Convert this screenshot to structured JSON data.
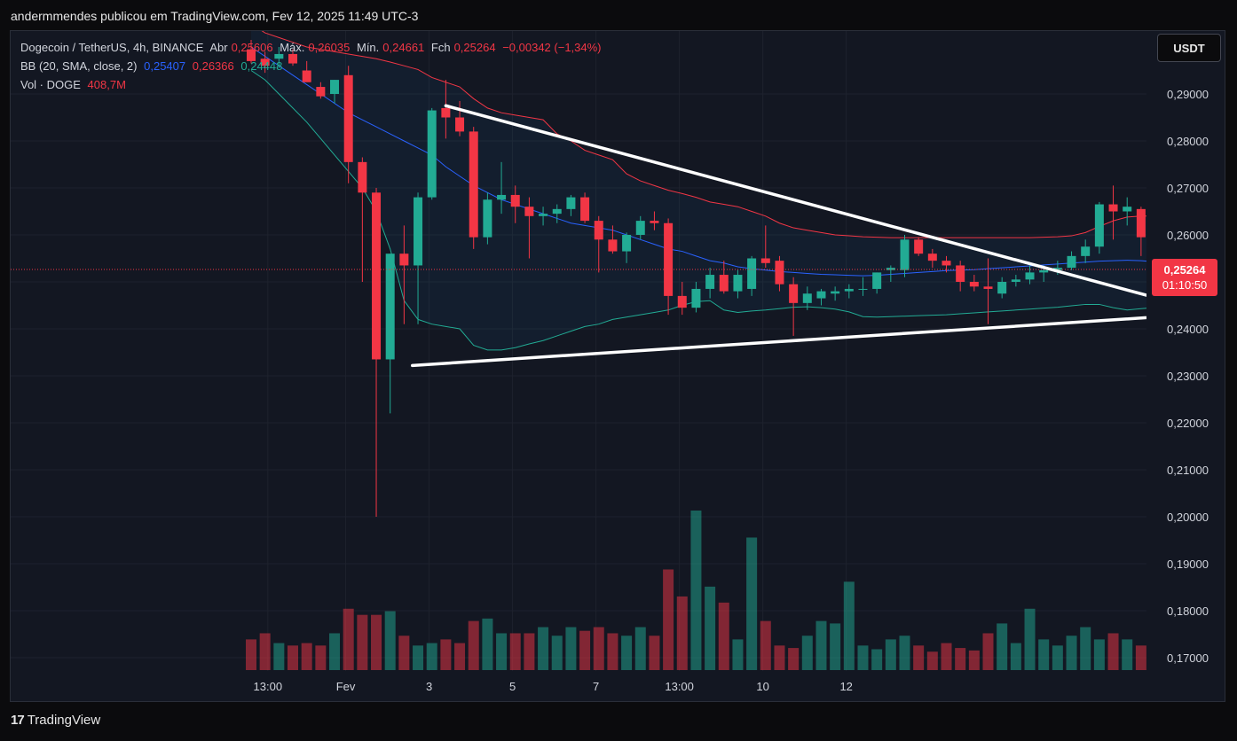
{
  "header": {
    "publish_text": "andermmendes publicou em TradingView.com, Fev 12, 2025 11:49 UTC-3"
  },
  "legend": {
    "line1": {
      "symbol": "Dogecoin / TetherUS, 4h, BINANCE",
      "open_label": "Abr",
      "open_value": "0,25606",
      "high_label": "Máx.",
      "high_value": "0,26035",
      "low_label": "Mín.",
      "low_value": "0,24661",
      "close_label": "Fch",
      "close_value": "0,25264",
      "change": "−0,00342 (−1,34%)"
    },
    "line2": {
      "name": "BB (20, SMA, close, 2)",
      "basis": "0,25407",
      "upper": "0,26366",
      "lower": "0,24448"
    },
    "line3": {
      "name": "Vol · DOGE",
      "value": "408,7M"
    }
  },
  "currency_button": "USDT",
  "price_tag": {
    "price": "0,25264",
    "countdown": "01:10:50"
  },
  "footer": {
    "brand": "TradingView",
    "logo": "17"
  },
  "colors": {
    "background": "#131722",
    "up": "#22ab94",
    "down": "#f23645",
    "bb_basis": "#2962ff",
    "bb_upper": "#f23645",
    "bb_lower": "#22ab94",
    "triangle": "#ffffff"
  },
  "chart_data": {
    "type": "candlestick",
    "symbol": "DOGEUSDT",
    "interval": "4h",
    "y_axis": {
      "ticks": [
        "0,29000",
        "0,28000",
        "0,27000",
        "0,26000",
        "0,25000",
        "0,24000",
        "0,23000",
        "0,22000",
        "0,21000",
        "0,20000",
        "0,19000",
        "0,18000",
        "0,17000"
      ],
      "tick_values": [
        0.29,
        0.28,
        0.27,
        0.26,
        0.25,
        0.24,
        0.23,
        0.22,
        0.21,
        0.2,
        0.19,
        0.18,
        0.17
      ],
      "range": [
        0.1675,
        0.2985
      ]
    },
    "x_axis": {
      "labels": [
        "13:00",
        "Fev",
        "3",
        "5",
        "7",
        "13:00",
        "10",
        "12"
      ],
      "label_index": [
        1.2,
        6.8,
        12.8,
        18.8,
        24.8,
        30.8,
        36.8,
        42.8
      ]
    },
    "candles": [
      {
        "o": 0.2995,
        "h": 0.3015,
        "l": 0.2965,
        "c": 0.297
      },
      {
        "o": 0.2975,
        "h": 0.299,
        "l": 0.2945,
        "c": 0.296
      },
      {
        "o": 0.2975,
        "h": 0.3,
        "l": 0.2955,
        "c": 0.2985
      },
      {
        "o": 0.2985,
        "h": 0.2995,
        "l": 0.296,
        "c": 0.2965
      },
      {
        "o": 0.295,
        "h": 0.297,
        "l": 0.293,
        "c": 0.2925
      },
      {
        "o": 0.2915,
        "h": 0.2925,
        "l": 0.289,
        "c": 0.2895
      },
      {
        "o": 0.29,
        "h": 0.293,
        "l": 0.288,
        "c": 0.293
      },
      {
        "o": 0.294,
        "h": 0.296,
        "l": 0.271,
        "c": 0.2755
      },
      {
        "o": 0.2755,
        "h": 0.2765,
        "l": 0.25,
        "c": 0.269
      },
      {
        "o": 0.269,
        "h": 0.27,
        "l": 0.2,
        "c": 0.2335
      },
      {
        "o": 0.2335,
        "h": 0.256,
        "l": 0.222,
        "c": 0.256
      },
      {
        "o": 0.256,
        "h": 0.262,
        "l": 0.241,
        "c": 0.2535
      },
      {
        "o": 0.2535,
        "h": 0.269,
        "l": 0.241,
        "c": 0.268
      },
      {
        "o": 0.268,
        "h": 0.287,
        "l": 0.2675,
        "c": 0.2865
      },
      {
        "o": 0.287,
        "h": 0.293,
        "l": 0.2805,
        "c": 0.285
      },
      {
        "o": 0.285,
        "h": 0.2885,
        "l": 0.281,
        "c": 0.282
      },
      {
        "o": 0.282,
        "h": 0.283,
        "l": 0.257,
        "c": 0.2595
      },
      {
        "o": 0.2595,
        "h": 0.269,
        "l": 0.258,
        "c": 0.2675
      },
      {
        "o": 0.2675,
        "h": 0.2755,
        "l": 0.2645,
        "c": 0.2685
      },
      {
        "o": 0.2685,
        "h": 0.2705,
        "l": 0.2625,
        "c": 0.266
      },
      {
        "o": 0.266,
        "h": 0.268,
        "l": 0.255,
        "c": 0.264
      },
      {
        "o": 0.264,
        "h": 0.266,
        "l": 0.262,
        "c": 0.2645
      },
      {
        "o": 0.2645,
        "h": 0.2665,
        "l": 0.2625,
        "c": 0.2655
      },
      {
        "o": 0.2655,
        "h": 0.2685,
        "l": 0.264,
        "c": 0.268
      },
      {
        "o": 0.268,
        "h": 0.269,
        "l": 0.2625,
        "c": 0.263
      },
      {
        "o": 0.263,
        "h": 0.264,
        "l": 0.252,
        "c": 0.259
      },
      {
        "o": 0.259,
        "h": 0.262,
        "l": 0.256,
        "c": 0.2565
      },
      {
        "o": 0.2565,
        "h": 0.2605,
        "l": 0.254,
        "c": 0.26
      },
      {
        "o": 0.26,
        "h": 0.264,
        "l": 0.259,
        "c": 0.263
      },
      {
        "o": 0.263,
        "h": 0.265,
        "l": 0.261,
        "c": 0.2625
      },
      {
        "o": 0.2625,
        "h": 0.2635,
        "l": 0.243,
        "c": 0.247
      },
      {
        "o": 0.247,
        "h": 0.25,
        "l": 0.243,
        "c": 0.2445
      },
      {
        "o": 0.2445,
        "h": 0.25,
        "l": 0.2435,
        "c": 0.2485
      },
      {
        "o": 0.2485,
        "h": 0.253,
        "l": 0.2465,
        "c": 0.2515
      },
      {
        "o": 0.2515,
        "h": 0.2545,
        "l": 0.2475,
        "c": 0.248
      },
      {
        "o": 0.248,
        "h": 0.2525,
        "l": 0.2465,
        "c": 0.2515
      },
      {
        "o": 0.2485,
        "h": 0.2555,
        "l": 0.247,
        "c": 0.255
      },
      {
        "o": 0.255,
        "h": 0.262,
        "l": 0.253,
        "c": 0.254
      },
      {
        "o": 0.2545,
        "h": 0.2555,
        "l": 0.248,
        "c": 0.2495
      },
      {
        "o": 0.2495,
        "h": 0.251,
        "l": 0.2385,
        "c": 0.2455
      },
      {
        "o": 0.2455,
        "h": 0.249,
        "l": 0.244,
        "c": 0.2475
      },
      {
        "o": 0.2465,
        "h": 0.2485,
        "l": 0.245,
        "c": 0.248
      },
      {
        "o": 0.2475,
        "h": 0.249,
        "l": 0.246,
        "c": 0.248
      },
      {
        "o": 0.248,
        "h": 0.2495,
        "l": 0.2465,
        "c": 0.2485
      },
      {
        "o": 0.2485,
        "h": 0.251,
        "l": 0.247,
        "c": 0.2485
      },
      {
        "o": 0.2485,
        "h": 0.252,
        "l": 0.2475,
        "c": 0.252
      },
      {
        "o": 0.2525,
        "h": 0.2535,
        "l": 0.25,
        "c": 0.253
      },
      {
        "o": 0.2525,
        "h": 0.26,
        "l": 0.251,
        "c": 0.259
      },
      {
        "o": 0.259,
        "h": 0.2595,
        "l": 0.2555,
        "c": 0.256
      },
      {
        "o": 0.256,
        "h": 0.257,
        "l": 0.253,
        "c": 0.2545
      },
      {
        "o": 0.2545,
        "h": 0.2555,
        "l": 0.252,
        "c": 0.2535
      },
      {
        "o": 0.2535,
        "h": 0.2545,
        "l": 0.248,
        "c": 0.25
      },
      {
        "o": 0.25,
        "h": 0.2515,
        "l": 0.248,
        "c": 0.249
      },
      {
        "o": 0.249,
        "h": 0.255,
        "l": 0.241,
        "c": 0.2485
      },
      {
        "o": 0.2475,
        "h": 0.251,
        "l": 0.2465,
        "c": 0.25
      },
      {
        "o": 0.25,
        "h": 0.2515,
        "l": 0.249,
        "c": 0.2505
      },
      {
        "o": 0.2505,
        "h": 0.2535,
        "l": 0.2495,
        "c": 0.252
      },
      {
        "o": 0.252,
        "h": 0.2535,
        "l": 0.25,
        "c": 0.2525
      },
      {
        "o": 0.2525,
        "h": 0.2545,
        "l": 0.2515,
        "c": 0.253
      },
      {
        "o": 0.253,
        "h": 0.2565,
        "l": 0.2525,
        "c": 0.2555
      },
      {
        "o": 0.2555,
        "h": 0.259,
        "l": 0.254,
        "c": 0.2575
      },
      {
        "o": 0.2575,
        "h": 0.267,
        "l": 0.256,
        "c": 0.2665
      },
      {
        "o": 0.2665,
        "h": 0.2705,
        "l": 0.259,
        "c": 0.265
      },
      {
        "o": 0.265,
        "h": 0.268,
        "l": 0.262,
        "c": 0.266
      },
      {
        "o": 0.2655,
        "h": 0.266,
        "l": 0.2555,
        "c": 0.2595
      },
      {
        "o": 0.2595,
        "h": 0.26,
        "l": 0.248,
        "c": 0.2505
      },
      {
        "o": 0.2505,
        "h": 0.2545,
        "l": 0.25,
        "c": 0.253
      },
      {
        "o": 0.253,
        "h": 0.255,
        "l": 0.2495,
        "c": 0.2505
      },
      {
        "o": 0.2505,
        "h": 0.254,
        "l": 0.2495,
        "c": 0.2535
      },
      {
        "o": 0.2535,
        "h": 0.257,
        "l": 0.252,
        "c": 0.256
      },
      {
        "o": 0.256,
        "h": 0.26,
        "l": 0.2465,
        "c": 0.2525
      }
    ],
    "volume": [
      25,
      30,
      22,
      20,
      22,
      20,
      30,
      50,
      45,
      45,
      48,
      28,
      20,
      22,
      25,
      22,
      40,
      42,
      30,
      30,
      30,
      35,
      28,
      35,
      32,
      35,
      30,
      28,
      35,
      28,
      82,
      60,
      130,
      68,
      55,
      25,
      108,
      40,
      20,
      18,
      28,
      40,
      38,
      72,
      20,
      17,
      25,
      28,
      20,
      15,
      22,
      18,
      16,
      30,
      38,
      22,
      50,
      25,
      20,
      28,
      35,
      25,
      30,
      25,
      20,
      22,
      22,
      48,
      50,
      48,
      32
    ],
    "volume_max": 130,
    "bb": {
      "basis": [
        0.3,
        0.298,
        0.296,
        0.294,
        0.292,
        0.29,
        0.288,
        0.286,
        0.2845,
        0.283,
        0.2815,
        0.28,
        0.2785,
        0.277,
        0.2745,
        0.2725,
        0.2705,
        0.269,
        0.2675,
        0.2665,
        0.2655,
        0.2645,
        0.2635,
        0.2625,
        0.262,
        0.2615,
        0.261,
        0.26,
        0.259,
        0.258,
        0.257,
        0.2565,
        0.2555,
        0.2545,
        0.254,
        0.2532,
        0.2528,
        0.2525,
        0.2522,
        0.252,
        0.2518,
        0.2516,
        0.2515,
        0.2514,
        0.2513,
        0.2514,
        0.2516,
        0.2518,
        0.252,
        0.2522,
        0.2524,
        0.2525,
        0.2526,
        0.2528,
        0.253,
        0.2532,
        0.2534,
        0.2536,
        0.2538,
        0.254,
        0.2542,
        0.2544,
        0.2545,
        0.2546,
        0.2545,
        0.2543,
        0.2542,
        0.2541,
        0.2541,
        0.2541,
        0.2541
      ],
      "upper": [
        0.305,
        0.303,
        0.302,
        0.301,
        0.3,
        0.2995,
        0.299,
        0.2985,
        0.298,
        0.2975,
        0.2968,
        0.296,
        0.2952,
        0.2935,
        0.2925,
        0.2915,
        0.289,
        0.287,
        0.286,
        0.2855,
        0.285,
        0.2845,
        0.2815,
        0.28,
        0.278,
        0.277,
        0.276,
        0.273,
        0.2715,
        0.2705,
        0.2695,
        0.2688,
        0.268,
        0.267,
        0.2665,
        0.266,
        0.265,
        0.264,
        0.2625,
        0.2615,
        0.261,
        0.2605,
        0.26,
        0.2598,
        0.2596,
        0.2595,
        0.2594,
        0.2594,
        0.2594,
        0.2594,
        0.2594,
        0.2594,
        0.2594,
        0.2594,
        0.2594,
        0.2594,
        0.2594,
        0.2595,
        0.2596,
        0.2598,
        0.2605,
        0.2618,
        0.263,
        0.2638,
        0.264,
        0.264,
        0.2639,
        0.2639,
        0.2638,
        0.2637,
        0.2636
      ],
      "lower": [
        0.295,
        0.293,
        0.29,
        0.287,
        0.284,
        0.2805,
        0.277,
        0.2735,
        0.27,
        0.265,
        0.257,
        0.246,
        0.242,
        0.241,
        0.2405,
        0.24,
        0.2365,
        0.2355,
        0.2355,
        0.236,
        0.2368,
        0.2375,
        0.2385,
        0.2395,
        0.2405,
        0.241,
        0.242,
        0.2425,
        0.243,
        0.2435,
        0.244,
        0.245,
        0.2458,
        0.246,
        0.244,
        0.2435,
        0.2438,
        0.244,
        0.2443,
        0.2446,
        0.2447,
        0.2445,
        0.2442,
        0.2436,
        0.2426,
        0.2425,
        0.2426,
        0.2427,
        0.2428,
        0.2429,
        0.243,
        0.2432,
        0.2434,
        0.2436,
        0.2438,
        0.244,
        0.2442,
        0.2444,
        0.2446,
        0.2449,
        0.2452,
        0.2452,
        0.2445,
        0.244,
        0.2443,
        0.2445,
        0.2448,
        0.2448,
        0.2449,
        0.2449,
        0.2448
      ]
    },
    "triangle": {
      "upper_line": [
        {
          "i": 14,
          "price": 0.2875
        },
        {
          "i": 69.2,
          "price": 0.2433
        }
      ],
      "lower_line": [
        {
          "i": 11.6,
          "price": 0.2322
        },
        {
          "i": 69.2,
          "price": 0.2433
        }
      ]
    },
    "last_price": 0.25264
  }
}
